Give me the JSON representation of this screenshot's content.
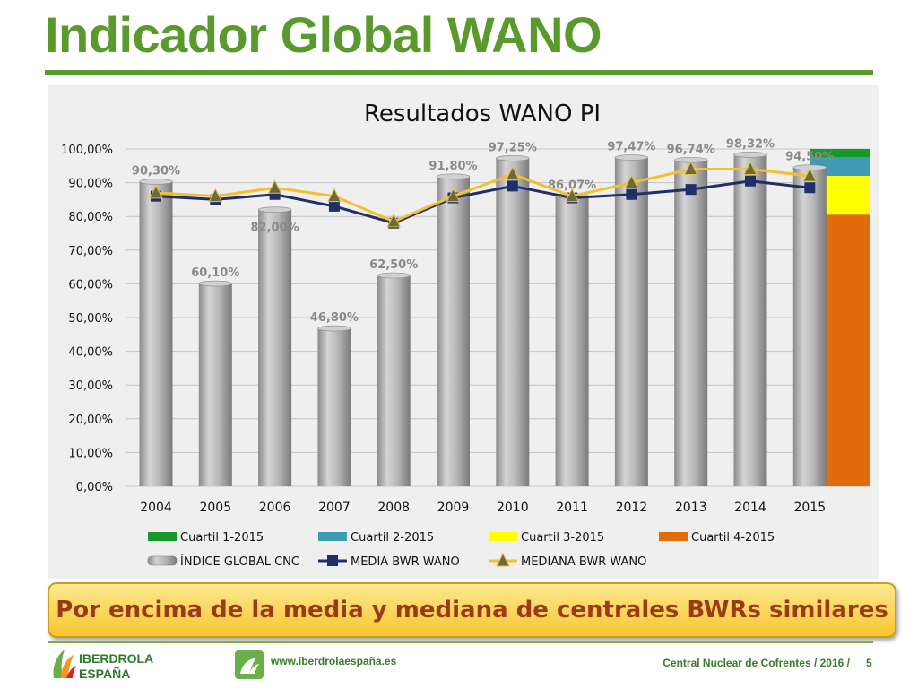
{
  "slide": {
    "title": "Indicador Global WANO",
    "banner": "Por encima de la media y mediana de centrales BWRs similares",
    "footer": {
      "logo_line1": "IBERDROLA",
      "logo_line2": "ESPAÑA",
      "url": "www.iberdrolaespaña.es",
      "center_text": "Central Nuclear de Cofrentes / 2016 /",
      "page": "5"
    }
  },
  "chart_data": {
    "type": "bar",
    "title": "Resultados WANO PI",
    "categories": [
      "2004",
      "2005",
      "2006",
      "2007",
      "2008",
      "2009",
      "2010",
      "2011",
      "2012",
      "2013",
      "2014",
      "2015"
    ],
    "ylim": [
      0,
      100
    ],
    "yticks": [
      "0,00%",
      "10,00%",
      "20,00%",
      "30,00%",
      "40,00%",
      "50,00%",
      "60,00%",
      "70,00%",
      "80,00%",
      "90,00%",
      "100,00%"
    ],
    "grid": true,
    "series": [
      {
        "name": "ÍNDICE GLOBAL CNC",
        "kind": "bar",
        "color": "#a8a8a8",
        "values": [
          90.3,
          60.1,
          82.0,
          46.8,
          62.5,
          91.8,
          97.25,
          86.07,
          97.47,
          96.74,
          98.32,
          94.5
        ],
        "labels": [
          "90,30%",
          "60,10%",
          "82,00%",
          "46,80%",
          "62,50%",
          "91,80%",
          "97,25%",
          "86,07%",
          "97,47%",
          "96,74%",
          "98,32%",
          "94,50%"
        ]
      },
      {
        "name": "MEDIA BWR WANO",
        "kind": "line",
        "color": "#1f2f6a",
        "values": [
          86,
          85,
          86.5,
          83,
          78,
          85.5,
          89,
          85.5,
          86.5,
          88,
          90.5,
          88.5
        ]
      },
      {
        "name": "MEDIANA BWR WANO",
        "kind": "line",
        "color": "#f5c030",
        "values": [
          87,
          86,
          88.5,
          86,
          78.5,
          86,
          92.5,
          86,
          90,
          94,
          94,
          92
        ]
      }
    ],
    "quartiles": [
      {
        "name": "Cuartil 1-2015",
        "color": "#159a2a",
        "from": 97.5,
        "to": 100
      },
      {
        "name": "Cuartil 2-2015",
        "color": "#3f9bb5",
        "from": 92,
        "to": 97.5
      },
      {
        "name": "Cuartil 3-2015",
        "color": "#ffff00",
        "from": 80.5,
        "to": 92
      },
      {
        "name": "Cuartil 4-2015",
        "color": "#e36c0a",
        "from": 0,
        "to": 80.5
      }
    ],
    "legend_position": "bottom",
    "legend": [
      {
        "name": "Cuartil 1-2015",
        "color": "#159a2a",
        "kind": "bar"
      },
      {
        "name": "Cuartil 2-2015",
        "color": "#3f9bb5",
        "kind": "bar"
      },
      {
        "name": "Cuartil 3-2015",
        "color": "#ffff00",
        "kind": "bar"
      },
      {
        "name": "Cuartil 4-2015",
        "color": "#e36c0a",
        "kind": "bar"
      },
      {
        "name": "ÍNDICE GLOBAL CNC",
        "color": "#a8a8a8",
        "kind": "cylinder"
      },
      {
        "name": "MEDIA BWR WANO",
        "color": "#1f2f6a",
        "kind": "line-square"
      },
      {
        "name": "MEDIANA BWR WANO",
        "color": "#f5c030",
        "kind": "line-triangle"
      }
    ]
  }
}
